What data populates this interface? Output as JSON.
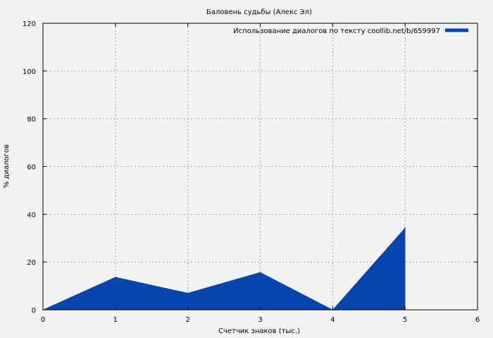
{
  "chart_data": {
    "type": "area",
    "title": "Баловень судьбы (Алекс Эл)",
    "xlabel": "Счетчик знаков (тыс.)",
    "ylabel": "% диалогов",
    "xlim": [
      0,
      6
    ],
    "ylim": [
      0,
      120
    ],
    "xticks": [
      "0",
      "1",
      "2",
      "3",
      "4",
      "5",
      "6"
    ],
    "yticks": [
      "0",
      "20",
      "40",
      "60",
      "80",
      "100",
      "120"
    ],
    "grid": true,
    "legend_position": "top-right",
    "series": [
      {
        "name": "Использование диалогов по тексту coollib.net/b/659997",
        "color": "#0645ad",
        "x": [
          0,
          1,
          2,
          3,
          4,
          5
        ],
        "y": [
          0,
          13.7,
          7.0,
          15.7,
          0,
          34.3
        ]
      }
    ]
  }
}
